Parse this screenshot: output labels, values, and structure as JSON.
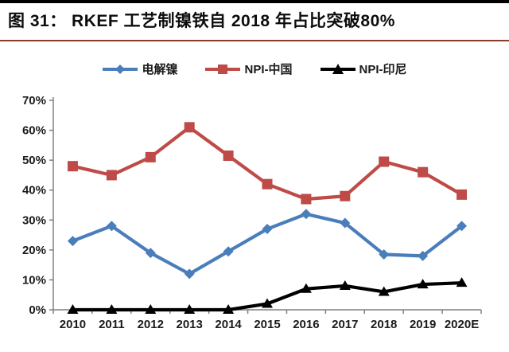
{
  "header": {
    "title": "图 31： RKEF 工艺制镍铁自 2018 年占比突破80%",
    "topbar_color": "#000000",
    "underline_color": "#8B3A2B"
  },
  "chart_data": {
    "type": "line",
    "categories": [
      "2010",
      "2011",
      "2012",
      "2013",
      "2014",
      "2015",
      "2016",
      "2017",
      "2018",
      "2019",
      "2020E"
    ],
    "series": [
      {
        "name": "电解镍",
        "color": "#4A7EBB",
        "marker": "diamond",
        "values": [
          23,
          28,
          19,
          12,
          19.5,
          27,
          32,
          29,
          18.5,
          18,
          28
        ]
      },
      {
        "name": "NPI-中国",
        "color": "#BE4B48",
        "marker": "square",
        "values": [
          48,
          45,
          51,
          61,
          51.5,
          42,
          37,
          38,
          49.5,
          46,
          38.5
        ]
      },
      {
        "name": "NPI-印尼",
        "color": "#000000",
        "marker": "triangle",
        "values": [
          0,
          0,
          0,
          0,
          0,
          2,
          7,
          8,
          6,
          8.5,
          9
        ]
      }
    ],
    "title": "",
    "xlabel": "",
    "ylabel": "",
    "ylim": [
      0,
      70
    ],
    "ytick_step": 10,
    "ytick_labels": [
      "0%",
      "10%",
      "20%",
      "30%",
      "40%",
      "50%",
      "60%",
      "70%"
    ],
    "grid": false,
    "legend_position": "top",
    "axis_color": "#808080",
    "label_color": "#1a1a1a"
  }
}
